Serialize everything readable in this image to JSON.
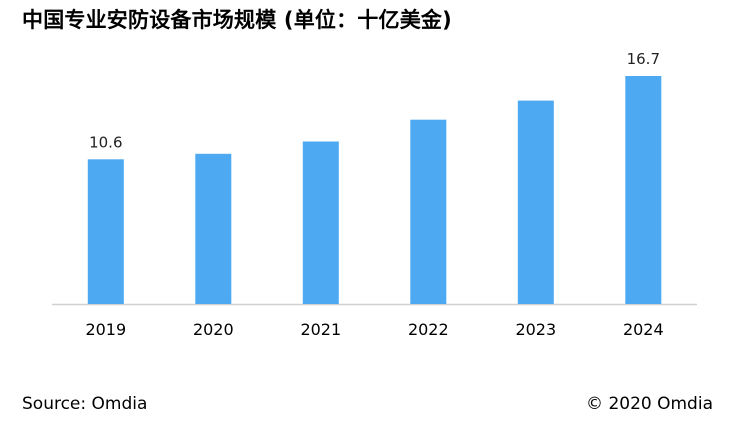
{
  "chart_data": {
    "type": "bar",
    "title": "中国专业安防设备市场规模 (单位：十亿美金)",
    "categories": [
      "2019",
      "2020",
      "2021",
      "2022",
      "2023",
      "2024"
    ],
    "values": [
      10.6,
      11.0,
      11.9,
      13.5,
      14.9,
      16.7
    ],
    "data_labels": [
      "10.6",
      "",
      "",
      "",
      "",
      "16.7"
    ],
    "xlabel": "",
    "ylabel": "",
    "ylim": [
      0,
      16.7
    ],
    "grid": false,
    "legend": "none",
    "bar_color": "#4daaf2",
    "axis_color": "#d0d0d0"
  },
  "footer": {
    "source": "Source: Omdia",
    "copyright": "© 2020 Omdia"
  }
}
